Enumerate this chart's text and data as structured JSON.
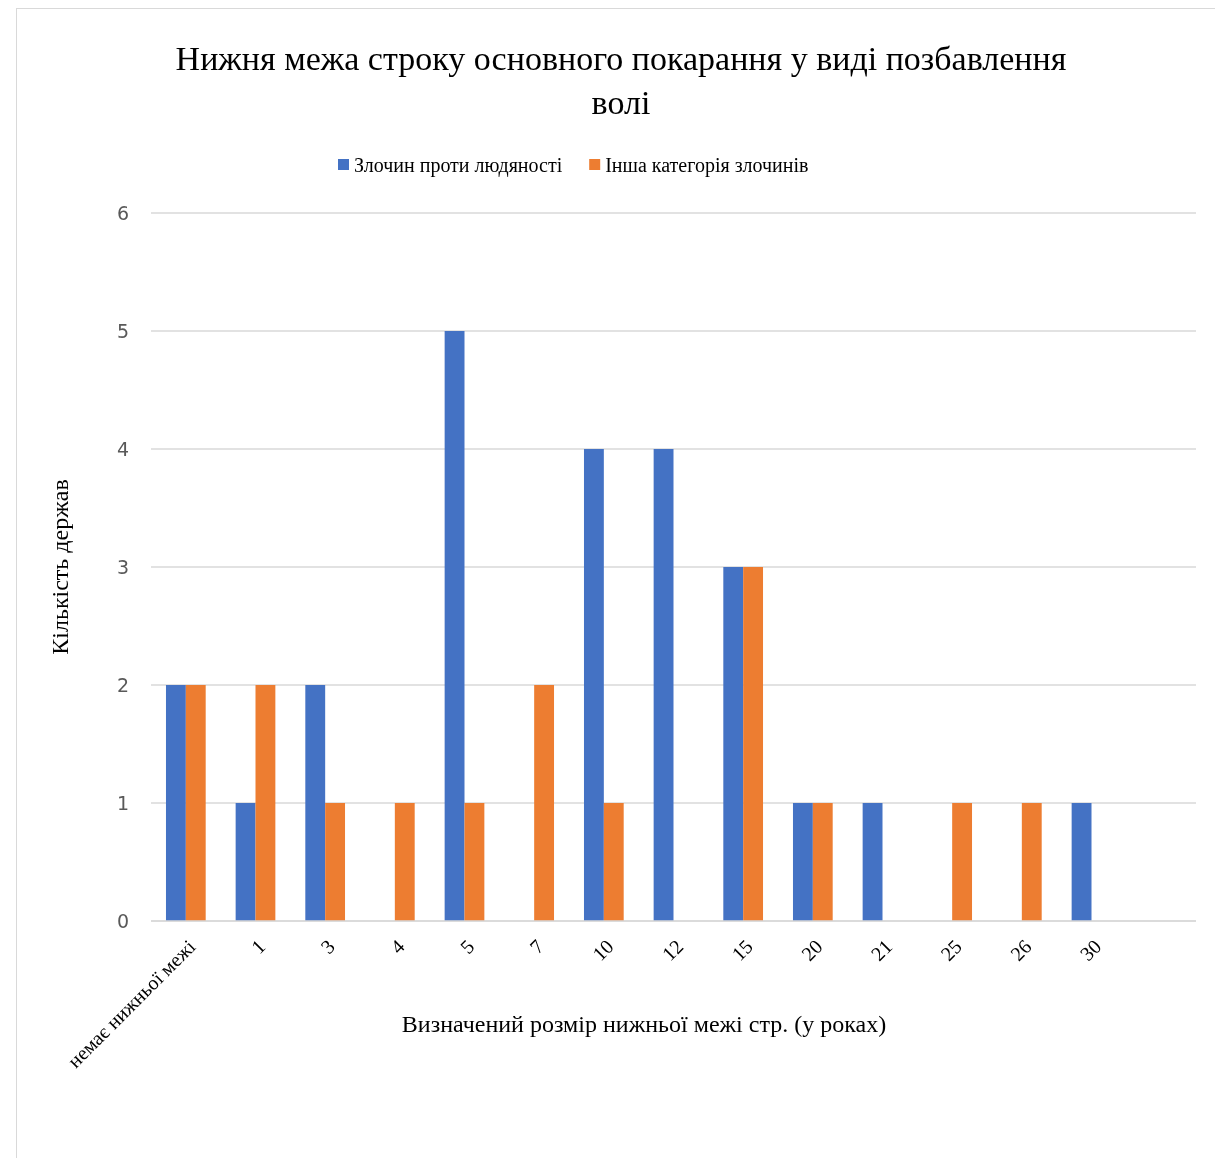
{
  "chart_data": {
    "type": "bar",
    "title": "Нижня межа строку основного покарання у виді позбавлення волі",
    "xlabel": "Визначений розмір нижньої межі стр. (у роках)",
    "ylabel": "Кількість держав",
    "categories": [
      "немає нижньої межі",
      "1",
      "3",
      "4",
      "5",
      "7",
      "10",
      "12",
      "15",
      "20",
      "21",
      "25",
      "26",
      "30",
      null
    ],
    "series": [
      {
        "name": "Злочин проти людяності",
        "color": "#4472c4",
        "values": [
          2,
          1,
          2,
          null,
          5,
          null,
          4,
          4,
          3,
          1,
          1,
          null,
          null,
          1,
          null
        ]
      },
      {
        "name": "Інша категорія злочинів",
        "color": "#ed7d31",
        "values": [
          2,
          2,
          1,
          1,
          1,
          2,
          1,
          null,
          3,
          1,
          null,
          1,
          1,
          null,
          null
        ]
      }
    ],
    "ylim": [
      0,
      6
    ],
    "yticks": [
      0,
      1,
      2,
      3,
      4,
      5,
      6
    ],
    "grid": "y",
    "legend": "top"
  }
}
